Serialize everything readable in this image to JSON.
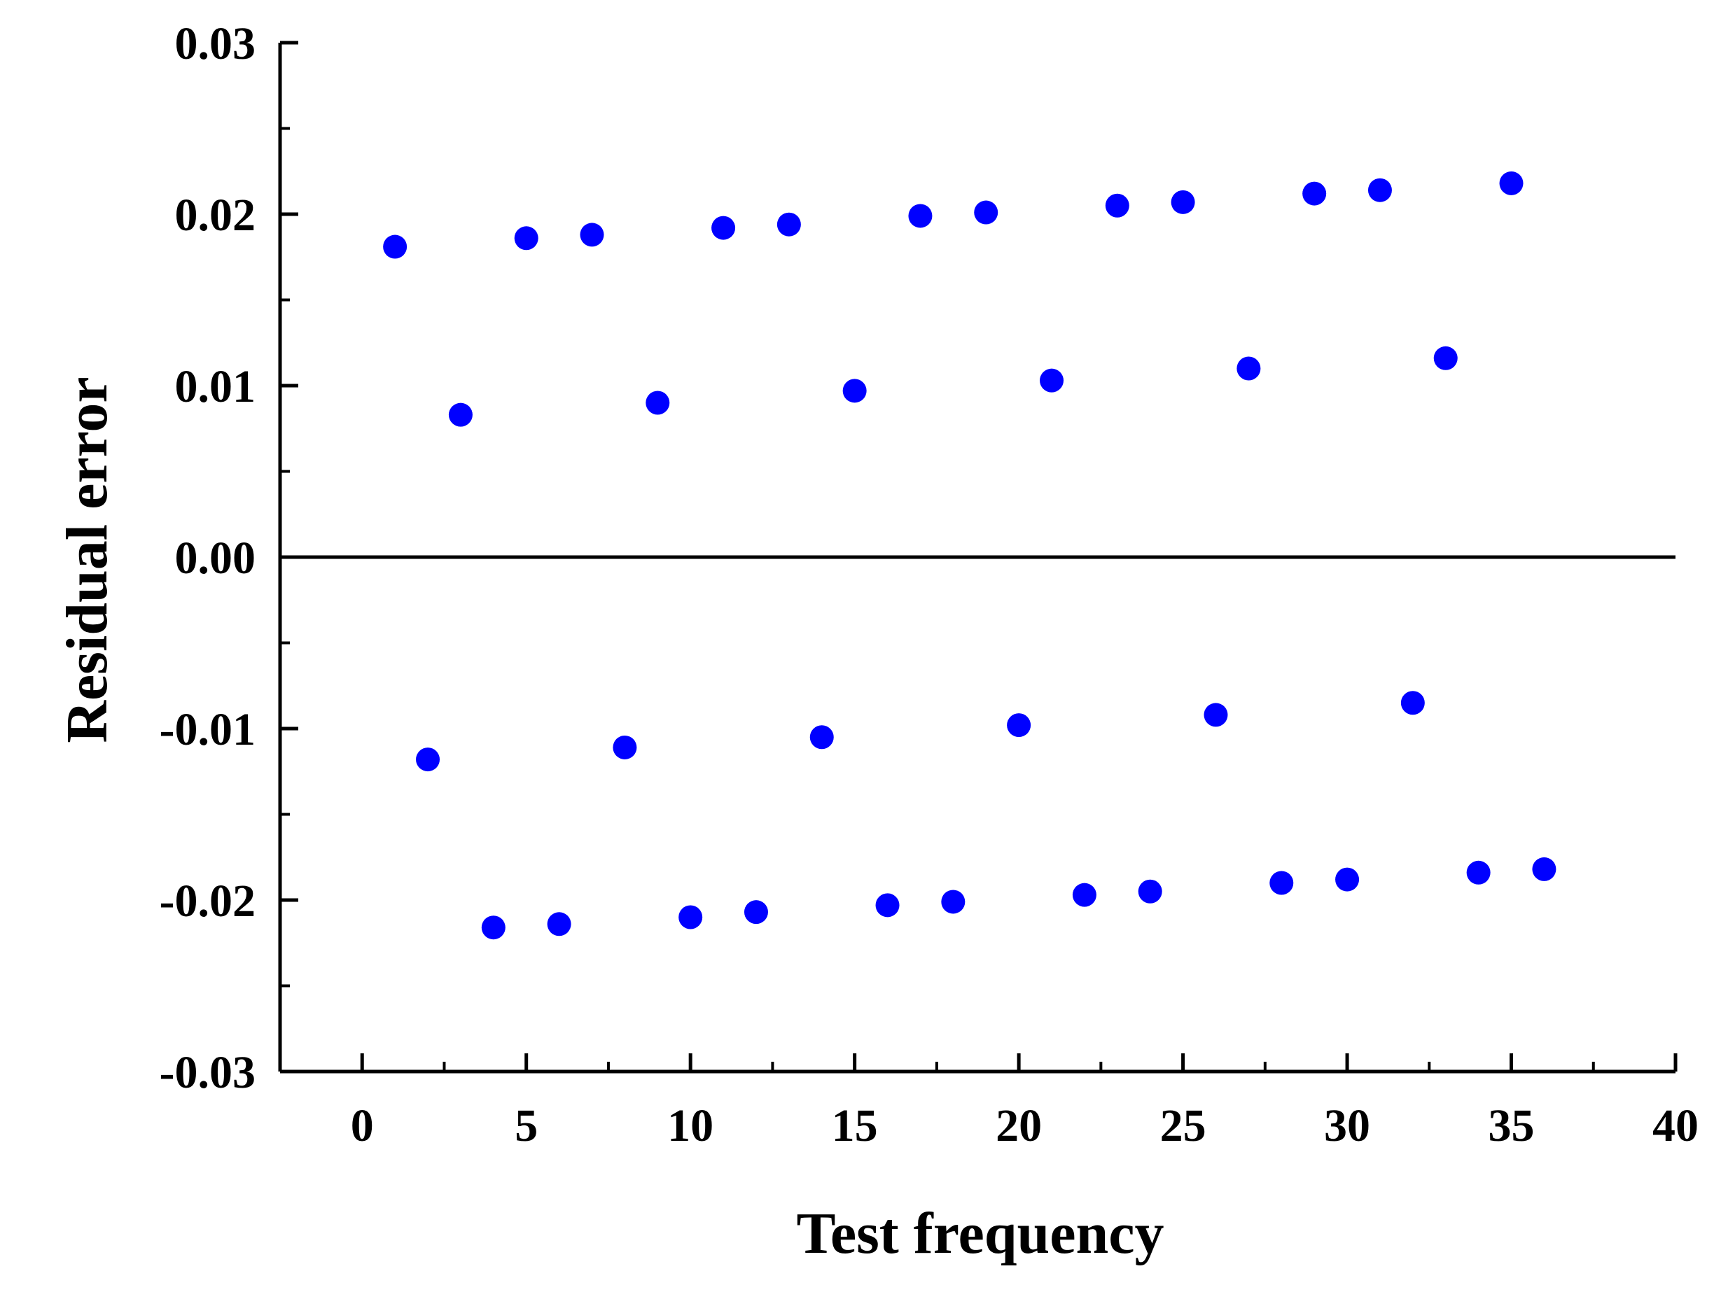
{
  "chart_data": {
    "type": "scatter",
    "xlabel": "Test frequency",
    "ylabel": "Residual error",
    "xlim": [
      -2.5,
      40
    ],
    "ylim": [
      -0.03,
      0.03
    ],
    "x_ticks": [
      0,
      5,
      10,
      15,
      20,
      25,
      30,
      35,
      40
    ],
    "x_tick_labels": [
      "0",
      "5",
      "10",
      "15",
      "20",
      "25",
      "30",
      "35",
      "40"
    ],
    "y_ticks": [
      -0.03,
      -0.02,
      -0.01,
      0.0,
      0.01,
      0.02,
      0.03
    ],
    "y_tick_labels": [
      "-0.03",
      "-0.02",
      "-0.01",
      "0.00",
      "0.01",
      "0.02",
      "0.03"
    ],
    "reference_line_y": 0,
    "grid": false,
    "marker_color": "#0000ff",
    "series": [
      {
        "x": [
          1,
          2,
          3,
          4,
          5,
          6,
          7,
          8,
          9,
          10,
          11,
          12,
          13,
          14,
          15,
          16,
          17,
          18,
          19,
          20,
          21,
          22,
          23,
          24,
          25,
          26,
          27,
          28,
          29,
          30,
          31,
          32,
          33,
          34,
          35,
          36
        ],
        "y": [
          0.0181,
          -0.0118,
          0.0083,
          -0.0216,
          0.0186,
          -0.0214,
          0.0188,
          -0.0111,
          0.009,
          -0.021,
          0.0192,
          -0.0207,
          0.0194,
          -0.0105,
          0.0097,
          -0.0203,
          0.0199,
          -0.0201,
          0.0201,
          -0.0098,
          0.0103,
          -0.0197,
          0.0205,
          -0.0195,
          0.0207,
          -0.0092,
          0.011,
          -0.019,
          0.0212,
          -0.0188,
          0.0214,
          -0.0085,
          0.0116,
          -0.0184,
          0.0218,
          -0.0182
        ]
      }
    ]
  }
}
